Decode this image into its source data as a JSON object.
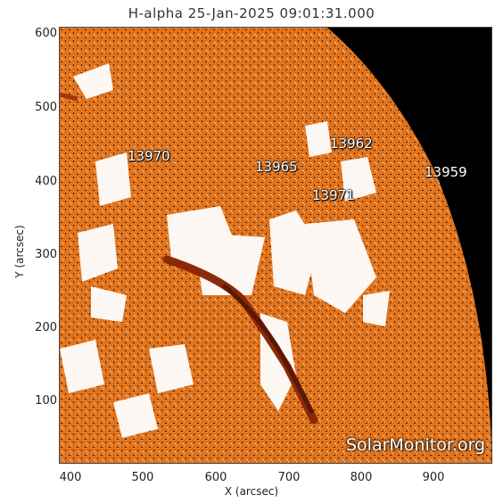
{
  "title": "H-alpha 25-Jan-2025 09:01:31.000",
  "axes": {
    "xlabel": "X (arcsec)",
    "ylabel": "Y (arcsec)",
    "xticks": [
      "400",
      "500",
      "600",
      "700",
      "800",
      "900"
    ],
    "yticks": [
      "600",
      "500",
      "400",
      "300",
      "200",
      "100"
    ]
  },
  "active_regions": [
    {
      "id": "ar-13970",
      "label": "13970"
    },
    {
      "id": "ar-13965",
      "label": "13965"
    },
    {
      "id": "ar-13962",
      "label": "13962"
    },
    {
      "id": "ar-13971",
      "label": "13971"
    },
    {
      "id": "ar-13959",
      "label": "13959"
    }
  ],
  "watermark": "SolarMonitor.org",
  "colors": {
    "solar_disk": "#e0741e",
    "plage": "#ffffff",
    "filament": "#8a2a08",
    "space": "#000000"
  }
}
